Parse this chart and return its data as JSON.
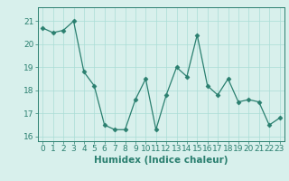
{
  "xlabel": "Humidex (Indice chaleur)",
  "x": [
    0,
    1,
    2,
    3,
    4,
    5,
    6,
    7,
    8,
    9,
    10,
    11,
    12,
    13,
    14,
    15,
    16,
    17,
    18,
    19,
    20,
    21,
    22,
    23
  ],
  "y": [
    20.7,
    20.5,
    20.6,
    21.0,
    18.8,
    18.2,
    16.5,
    16.3,
    16.3,
    17.6,
    18.5,
    16.3,
    17.8,
    19.0,
    18.6,
    20.4,
    18.2,
    17.8,
    18.5,
    17.5,
    17.6,
    17.5,
    16.5,
    16.8
  ],
  "line_color": "#2a7f6f",
  "marker": "D",
  "marker_size": 2.5,
  "bg_color": "#d8f0ec",
  "grid_color": "#aaddd6",
  "tick_color": "#2a7f6f",
  "label_color": "#2a7f6f",
  "ylim": [
    15.8,
    21.6
  ],
  "yticks": [
    16,
    17,
    18,
    19,
    20,
    21
  ],
  "xticks": [
    0,
    1,
    2,
    3,
    4,
    5,
    6,
    7,
    8,
    9,
    10,
    11,
    12,
    13,
    14,
    15,
    16,
    17,
    18,
    19,
    20,
    21,
    22,
    23
  ],
  "xlabel_fontsize": 7.5,
  "tick_fontsize": 6.5
}
